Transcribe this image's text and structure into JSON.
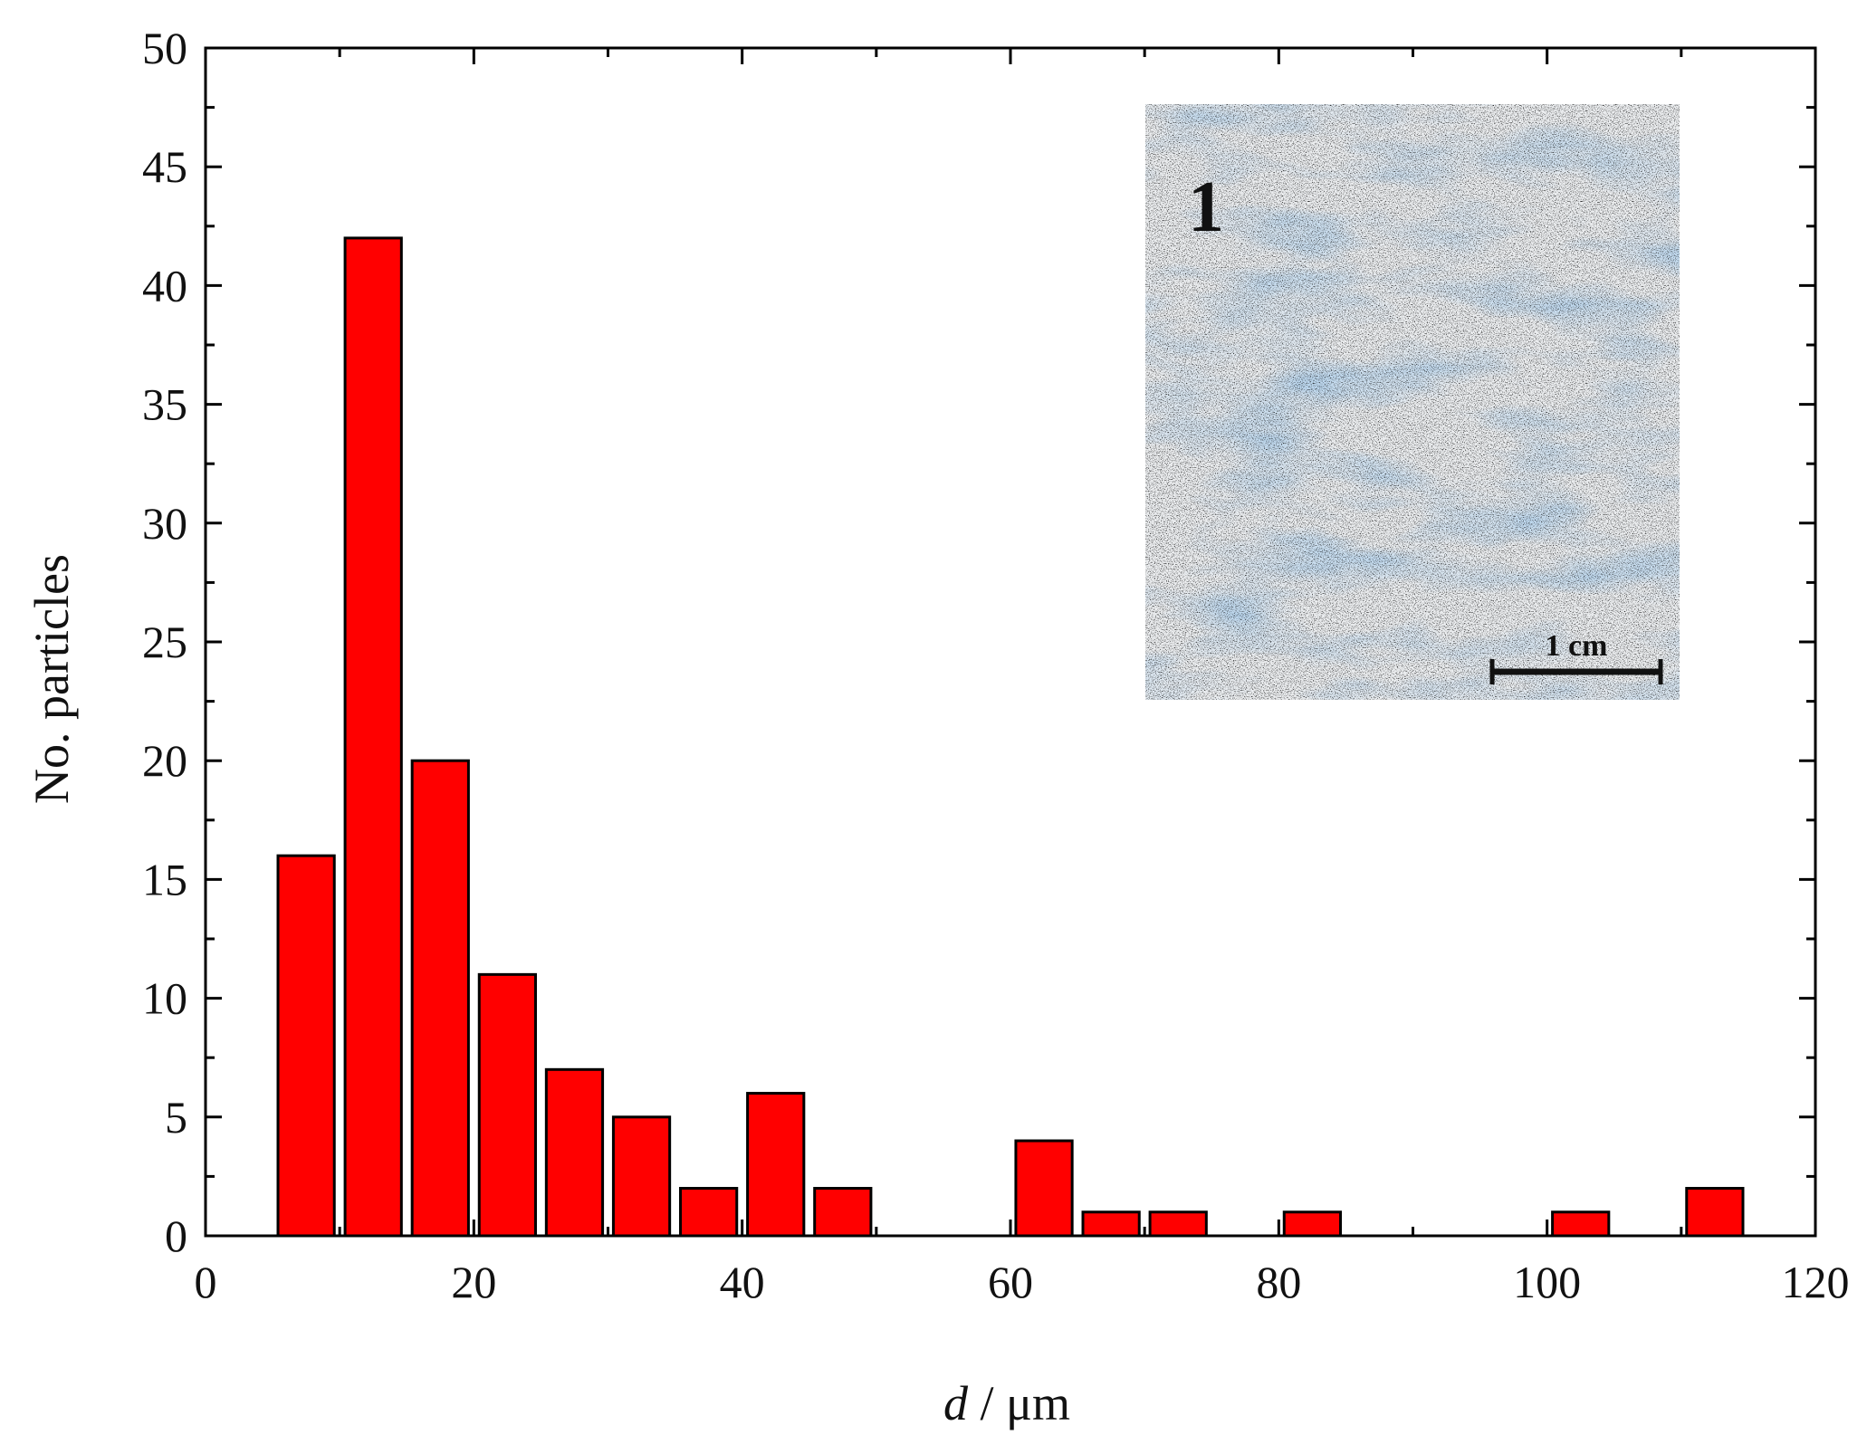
{
  "chart_data": {
    "type": "bar",
    "x": [
      7.5,
      12.5,
      17.5,
      22.5,
      27.5,
      32.5,
      37.5,
      42.5,
      47.5,
      62.5,
      67.5,
      72.5,
      82.5,
      102.5,
      112.5
    ],
    "values": [
      16,
      42,
      20,
      11,
      7,
      5,
      2,
      6,
      2,
      4,
      1,
      1,
      1,
      1,
      2
    ],
    "bin_width": 5,
    "xlabel_var": "d",
    "xlabel_unit": " / μm",
    "ylabel": "No. particles",
    "xlim": [
      0,
      120
    ],
    "ylim": [
      0,
      50
    ],
    "x_ticks": [
      "0",
      "20",
      "40",
      "60",
      "80",
      "100",
      "120"
    ],
    "y_ticks": [
      "0",
      "5",
      "10",
      "15",
      "20",
      "25",
      "30",
      "35",
      "40",
      "45",
      "50"
    ],
    "bar_color": "#ff0000",
    "grid": false,
    "inset": {
      "label": "1",
      "scale_bar_label": "1 cm"
    }
  }
}
